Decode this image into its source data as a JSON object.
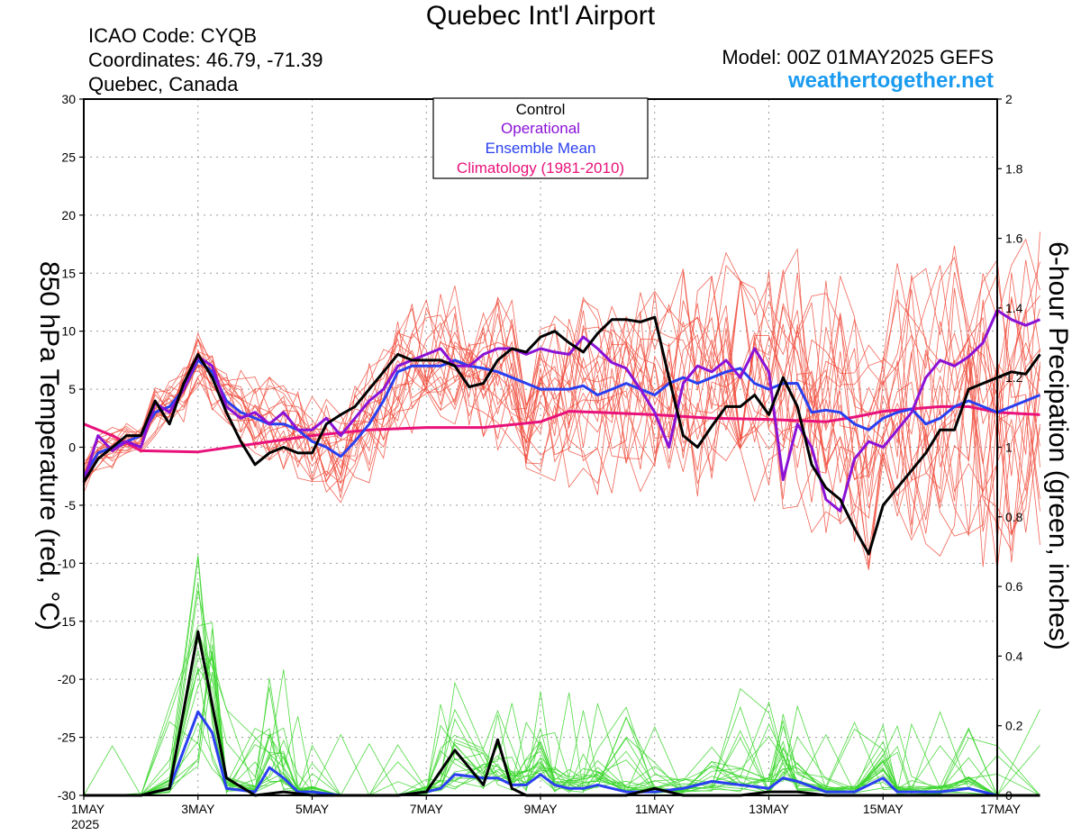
{
  "header": {
    "title": "Quebec Int'l Airport",
    "icao": "ICAO Code: CYQB",
    "coordinates": "Coordinates: 46.79, -71.39",
    "location": "Quebec, Canada",
    "model": "Model: 00Z 01MAY2025 GEFS",
    "brand": "weathertogether.net"
  },
  "colors": {
    "control": "#000000",
    "operational": "#8a12d6",
    "ensemble_mean": "#2a3fef",
    "climatology": "#e8127a",
    "member_temp": "#f04a3a",
    "member_precip": "#3cd62e",
    "brand": "#1a9bf0",
    "grid": "#9a9a9a"
  },
  "chart_data": {
    "type": "line",
    "x_unit": "days since 00Z 01MAY2025",
    "xlim": [
      0,
      16
    ],
    "x_ticks": [
      {
        "x": 0,
        "label": "1MAY",
        "sublabel": "2025"
      },
      {
        "x": 2,
        "label": "3MAY"
      },
      {
        "x": 4,
        "label": "5MAY"
      },
      {
        "x": 6,
        "label": "7MAY"
      },
      {
        "x": 8,
        "label": "9MAY"
      },
      {
        "x": 10,
        "label": "11MAY"
      },
      {
        "x": 12,
        "label": "13MAY"
      },
      {
        "x": 14,
        "label": "15MAY"
      },
      {
        "x": 16,
        "label": "17MAY"
      }
    ],
    "y_left": {
      "label": "850 hPa Temperature (red, °C)",
      "lim": [
        -30,
        30
      ],
      "ticks": [
        30,
        25,
        20,
        15,
        10,
        5,
        0,
        -5,
        -10,
        -15,
        -20,
        -25,
        -30
      ]
    },
    "y_right": {
      "label": "6-hour Precipation (green, inches)",
      "lim": [
        0,
        2
      ],
      "ticks": [
        2,
        1.8,
        1.6,
        1.4,
        1.2,
        1,
        0.8,
        0.6,
        0.4,
        0.2,
        0
      ]
    },
    "grid": true,
    "legend": {
      "position": "top-center",
      "entries": [
        {
          "label": "Control",
          "color": "#000000"
        },
        {
          "label": "Operational",
          "color": "#8a12d6"
        },
        {
          "label": "Ensemble Mean",
          "color": "#2a3fef"
        },
        {
          "label": "Climatology (1981-2010)",
          "color": "#e8127a"
        }
      ]
    },
    "temperature": {
      "control": [
        [
          0,
          -3
        ],
        [
          0.25,
          -1
        ],
        [
          0.5,
          0
        ],
        [
          0.75,
          1
        ],
        [
          1,
          1
        ],
        [
          1.25,
          4
        ],
        [
          1.5,
          2
        ],
        [
          1.75,
          5.5
        ],
        [
          2,
          8
        ],
        [
          2.25,
          6
        ],
        [
          2.5,
          3
        ],
        [
          2.75,
          0.5
        ],
        [
          3,
          -1.5
        ],
        [
          3.25,
          -0.5
        ],
        [
          3.5,
          0
        ],
        [
          3.75,
          -0.5
        ],
        [
          4,
          -0.5
        ],
        [
          4.25,
          2
        ],
        [
          4.5,
          2.8
        ],
        [
          4.75,
          3.5
        ],
        [
          5,
          5
        ],
        [
          5.25,
          6.5
        ],
        [
          5.5,
          8
        ],
        [
          5.75,
          7.5
        ],
        [
          6,
          7.5
        ],
        [
          6.25,
          7.5
        ],
        [
          6.5,
          7
        ],
        [
          6.75,
          5.2
        ],
        [
          7,
          5.5
        ],
        [
          7.25,
          7.5
        ],
        [
          7.5,
          8.5
        ],
        [
          7.75,
          8.2
        ],
        [
          8,
          9.5
        ],
        [
          8.25,
          10
        ],
        [
          8.5,
          9
        ],
        [
          8.75,
          8.2
        ],
        [
          9,
          9.8
        ],
        [
          9.25,
          11
        ],
        [
          9.5,
          11
        ],
        [
          9.75,
          10.8
        ],
        [
          10,
          11.2
        ],
        [
          10.25,
          6
        ],
        [
          10.5,
          1
        ],
        [
          10.75,
          0
        ],
        [
          11,
          1.8
        ],
        [
          11.25,
          3.5
        ],
        [
          11.5,
          3.5
        ],
        [
          11.75,
          4.5
        ],
        [
          12,
          2.8
        ],
        [
          12.25,
          6
        ],
        [
          12.5,
          3.5
        ],
        [
          12.75,
          -1.5
        ],
        [
          13,
          -3.5
        ],
        [
          13.25,
          -4.5
        ],
        [
          13.5,
          -7
        ],
        [
          13.75,
          -9.2
        ],
        [
          14,
          -5
        ],
        [
          14.25,
          -3.5
        ],
        [
          14.5,
          -2
        ],
        [
          14.75,
          -0.5
        ],
        [
          15,
          1.5
        ],
        [
          15.25,
          1.5
        ],
        [
          15.5,
          5
        ],
        [
          15.75,
          5.5
        ],
        [
          16,
          6
        ],
        [
          16.25,
          6.5
        ],
        [
          16.5,
          6.3
        ],
        [
          16.75,
          8
        ]
      ],
      "operational": [
        [
          0,
          -3
        ],
        [
          0.25,
          1
        ],
        [
          0.5,
          -0.3
        ],
        [
          0.75,
          0.5
        ],
        [
          1,
          0
        ],
        [
          1.25,
          3.8
        ],
        [
          1.5,
          3
        ],
        [
          1.75,
          5
        ],
        [
          2,
          7.8
        ],
        [
          2.25,
          7
        ],
        [
          2.5,
          3.5
        ],
        [
          2.75,
          2.5
        ],
        [
          3,
          3
        ],
        [
          3.25,
          2
        ],
        [
          3.5,
          3
        ],
        [
          3.75,
          1.5
        ],
        [
          4,
          1.5
        ],
        [
          4.25,
          2.5
        ],
        [
          4.5,
          1
        ],
        [
          4.75,
          2.5
        ],
        [
          5,
          4
        ],
        [
          5.25,
          5
        ],
        [
          5.5,
          7
        ],
        [
          5.75,
          7.5
        ],
        [
          6,
          8
        ],
        [
          6.25,
          8.5
        ],
        [
          6.5,
          7
        ],
        [
          6.75,
          7
        ],
        [
          7,
          8
        ],
        [
          7.25,
          8.5
        ],
        [
          7.5,
          8.5
        ],
        [
          7.75,
          8
        ],
        [
          8,
          8.5
        ],
        [
          8.25,
          8.2
        ],
        [
          8.5,
          8
        ],
        [
          8.75,
          9.5
        ],
        [
          9,
          8.5
        ],
        [
          9.25,
          7.3
        ],
        [
          9.5,
          6.8
        ],
        [
          9.75,
          5
        ],
        [
          10,
          3
        ],
        [
          10.25,
          0
        ],
        [
          10.5,
          5.5
        ],
        [
          10.75,
          7
        ],
        [
          11,
          6.5
        ],
        [
          11.25,
          7.5
        ],
        [
          11.5,
          6
        ],
        [
          11.75,
          8.5
        ],
        [
          12,
          6.5
        ],
        [
          12.25,
          -2.8
        ],
        [
          12.5,
          2
        ],
        [
          12.75,
          0
        ],
        [
          13,
          -4.5
        ],
        [
          13.25,
          -5.5
        ],
        [
          13.5,
          -1
        ],
        [
          13.75,
          0.5
        ],
        [
          14,
          0
        ],
        [
          14.25,
          1.5
        ],
        [
          14.5,
          3
        ],
        [
          14.75,
          6
        ],
        [
          15,
          7.5
        ],
        [
          15.25,
          7
        ],
        [
          15.5,
          7.8
        ],
        [
          15.75,
          9
        ],
        [
          16,
          11.8
        ],
        [
          16.25,
          11
        ],
        [
          16.5,
          10.5
        ],
        [
          16.75,
          11
        ]
      ],
      "ensemble_mean": [
        [
          0,
          -2.5
        ],
        [
          0.25,
          -0.5
        ],
        [
          0.5,
          0
        ],
        [
          0.75,
          0.5
        ],
        [
          1,
          1
        ],
        [
          1.25,
          3
        ],
        [
          1.5,
          3.5
        ],
        [
          1.75,
          5
        ],
        [
          2,
          7.5
        ],
        [
          2.25,
          6.5
        ],
        [
          2.5,
          4
        ],
        [
          2.75,
          3
        ],
        [
          3,
          2.5
        ],
        [
          3.25,
          2
        ],
        [
          3.5,
          2
        ],
        [
          3.75,
          1.5
        ],
        [
          4,
          0.5
        ],
        [
          4.25,
          0
        ],
        [
          4.5,
          -0.8
        ],
        [
          4.75,
          0.5
        ],
        [
          5,
          2
        ],
        [
          5.25,
          4
        ],
        [
          5.5,
          6.5
        ],
        [
          5.75,
          7
        ],
        [
          6,
          7
        ],
        [
          6.25,
          7
        ],
        [
          6.5,
          7.5
        ],
        [
          6.75,
          7
        ],
        [
          7,
          6.8
        ],
        [
          7.25,
          6.5
        ],
        [
          7.5,
          6
        ],
        [
          7.75,
          5.5
        ],
        [
          8,
          5
        ],
        [
          8.25,
          5
        ],
        [
          8.5,
          5
        ],
        [
          8.75,
          5.3
        ],
        [
          9,
          4.5
        ],
        [
          9.25,
          5
        ],
        [
          9.5,
          5.5
        ],
        [
          9.75,
          5
        ],
        [
          10,
          4.5
        ],
        [
          10.25,
          5.5
        ],
        [
          10.5,
          6
        ],
        [
          10.75,
          5.5
        ],
        [
          11,
          6
        ],
        [
          11.25,
          6.5
        ],
        [
          11.5,
          6.8
        ],
        [
          11.75,
          5.5
        ],
        [
          12,
          5
        ],
        [
          12.25,
          5.5
        ],
        [
          12.5,
          5.5
        ],
        [
          12.75,
          3
        ],
        [
          13,
          3.2
        ],
        [
          13.25,
          3
        ],
        [
          13.5,
          2
        ],
        [
          13.75,
          1.5
        ],
        [
          14,
          2.5
        ],
        [
          14.25,
          3
        ],
        [
          14.5,
          3.3
        ],
        [
          14.75,
          2
        ],
        [
          15,
          2.5
        ],
        [
          15.25,
          3.5
        ],
        [
          15.5,
          4
        ],
        [
          15.75,
          3.5
        ],
        [
          16,
          3
        ],
        [
          16.25,
          3.5
        ],
        [
          16.5,
          4
        ],
        [
          16.75,
          4.5
        ]
      ],
      "climatology": [
        [
          0,
          2
        ],
        [
          0.5,
          1
        ],
        [
          1,
          -0.3
        ],
        [
          2,
          -0.4
        ],
        [
          3,
          0.3
        ],
        [
          4,
          1
        ],
        [
          5,
          1.5
        ],
        [
          6,
          1.7
        ],
        [
          7,
          1.7
        ],
        [
          8,
          2.2
        ],
        [
          8.5,
          3.1
        ],
        [
          9,
          3
        ],
        [
          10,
          2.8
        ],
        [
          11,
          2.5
        ],
        [
          12,
          2.4
        ],
        [
          13,
          2.2
        ],
        [
          13.5,
          2.6
        ],
        [
          14,
          3.1
        ],
        [
          14.5,
          3.3
        ],
        [
          15,
          3.5
        ],
        [
          15.5,
          3.5
        ],
        [
          16,
          3
        ],
        [
          16.75,
          2.8
        ]
      ]
    },
    "precipitation": {
      "control": [
        [
          0,
          0
        ],
        [
          0.5,
          0
        ],
        [
          1,
          0
        ],
        [
          1.5,
          0.02
        ],
        [
          2,
          0.47
        ],
        [
          2.5,
          0.05
        ],
        [
          3,
          0
        ],
        [
          3.5,
          0.01
        ],
        [
          4,
          0
        ],
        [
          4.5,
          0
        ],
        [
          5,
          0
        ],
        [
          5.5,
          0
        ],
        [
          6,
          0.01
        ],
        [
          6.5,
          0.13
        ],
        [
          7,
          0.03
        ],
        [
          7.25,
          0.16
        ],
        [
          7.5,
          0.02
        ],
        [
          7.75,
          0
        ],
        [
          8,
          0
        ],
        [
          8.5,
          0
        ],
        [
          9,
          0
        ],
        [
          9.5,
          0
        ],
        [
          10,
          0.02
        ],
        [
          10.5,
          0
        ],
        [
          11,
          0
        ],
        [
          11.5,
          0
        ],
        [
          12,
          0.01
        ],
        [
          12.5,
          0.01
        ],
        [
          13,
          0
        ],
        [
          13.5,
          0
        ],
        [
          14,
          0
        ],
        [
          14.5,
          0
        ],
        [
          15,
          0
        ],
        [
          15.5,
          0
        ],
        [
          16,
          0
        ],
        [
          16.75,
          0
        ]
      ],
      "ensemble_mean": [
        [
          0,
          0
        ],
        [
          0.5,
          0
        ],
        [
          1,
          0
        ],
        [
          1.5,
          0.02
        ],
        [
          2,
          0.24
        ],
        [
          2.25,
          0.18
        ],
        [
          2.5,
          0.02
        ],
        [
          3,
          0.01
        ],
        [
          3.25,
          0.08
        ],
        [
          3.5,
          0.05
        ],
        [
          3.75,
          0.01
        ],
        [
          4,
          0.01
        ],
        [
          4.5,
          0
        ],
        [
          5,
          0
        ],
        [
          5.5,
          0
        ],
        [
          6,
          0.01
        ],
        [
          6.25,
          0.02
        ],
        [
          6.5,
          0.06
        ],
        [
          7,
          0.05
        ],
        [
          7.25,
          0.05
        ],
        [
          7.5,
          0.03
        ],
        [
          7.75,
          0.03
        ],
        [
          8,
          0.06
        ],
        [
          8.25,
          0.03
        ],
        [
          8.5,
          0.02
        ],
        [
          8.75,
          0.02
        ],
        [
          9,
          0.03
        ],
        [
          9.5,
          0.01
        ],
        [
          10,
          0.01
        ],
        [
          10.5,
          0.02
        ],
        [
          11,
          0.04
        ],
        [
          11.5,
          0.03
        ],
        [
          12,
          0.02
        ],
        [
          12.25,
          0.05
        ],
        [
          12.5,
          0.04
        ],
        [
          13,
          0.01
        ],
        [
          13.5,
          0.01
        ],
        [
          14,
          0.05
        ],
        [
          14.25,
          0.01
        ],
        [
          14.5,
          0.01
        ],
        [
          15,
          0.01
        ],
        [
          15.5,
          0.02
        ],
        [
          16,
          0
        ],
        [
          16.75,
          0
        ]
      ]
    }
  }
}
